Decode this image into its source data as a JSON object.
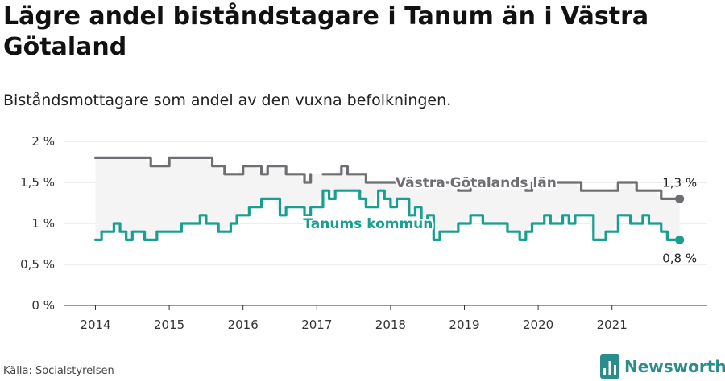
{
  "title": "Lägre andel biståndstagare i Tanum än i Västra Götaland",
  "subtitle": "Biståndsmottagare som andel av den vuxna befolkningen.",
  "source": "Källa: Socialstyrelsen",
  "brand": "Newsworthy",
  "colors": {
    "vastra": "#6e6e73",
    "tanum": "#1a9e8f",
    "band": "#f4f4f4",
    "grid": "#dcdcdc",
    "brand": "#2a8c8c"
  },
  "chart_data": {
    "type": "line",
    "x_start": "2014-01",
    "x_interval": "month",
    "y_ticks": [
      "0 %",
      "0,5 %",
      "1 %",
      "1,5 %",
      "2 %"
    ],
    "x_ticks": [
      "2014",
      "2015",
      "2016",
      "2017",
      "2018",
      "2019",
      "2020",
      "2021"
    ],
    "ylim": [
      0,
      2
    ],
    "series": [
      {
        "name": "Västra Götalands län",
        "key": "vastra",
        "end_label": "1,3 %",
        "values": [
          1.8,
          1.8,
          1.8,
          1.8,
          1.8,
          1.8,
          1.8,
          1.8,
          1.8,
          1.7,
          1.7,
          1.7,
          1.8,
          1.8,
          1.8,
          1.8,
          1.8,
          1.8,
          1.8,
          1.7,
          1.7,
          1.6,
          1.6,
          1.6,
          1.7,
          1.7,
          1.7,
          1.6,
          1.7,
          1.7,
          1.7,
          1.6,
          1.6,
          1.6,
          1.5,
          1.6,
          null,
          1.6,
          1.6,
          1.6,
          1.7,
          1.6,
          1.6,
          1.6,
          1.5,
          1.5,
          1.5,
          1.5,
          1.5,
          1.5,
          1.5,
          1.5,
          1.5,
          1.5,
          1.5,
          1.5,
          1.5,
          1.5,
          1.5,
          1.4,
          1.4,
          1.5,
          1.5,
          1.5,
          1.5,
          1.5,
          1.5,
          1.5,
          1.5,
          1.5,
          1.4,
          1.5,
          1.5,
          1.5,
          1.5,
          1.5,
          1.5,
          1.5,
          1.5,
          1.4,
          1.4,
          1.4,
          1.4,
          1.4,
          1.4,
          1.5,
          1.5,
          1.5,
          1.4,
          1.4,
          1.4,
          1.4,
          1.3,
          1.3,
          1.3,
          1.3
        ]
      },
      {
        "name": "Tanums kommun",
        "key": "tanum",
        "end_label": "0,8 %",
        "values": [
          0.8,
          0.9,
          0.9,
          1.0,
          0.9,
          0.8,
          0.9,
          0.9,
          0.8,
          0.8,
          0.9,
          0.9,
          0.9,
          0.9,
          1.0,
          1.0,
          1.0,
          1.1,
          1.0,
          1.0,
          0.9,
          0.9,
          1.0,
          1.1,
          1.1,
          1.2,
          1.2,
          1.3,
          1.3,
          1.3,
          1.1,
          1.2,
          1.2,
          1.2,
          1.1,
          1.2,
          1.2,
          1.4,
          1.3,
          1.4,
          1.4,
          1.4,
          1.4,
          1.3,
          1.2,
          1.2,
          1.4,
          1.3,
          1.2,
          1.3,
          1.3,
          1.1,
          1.2,
          1.0,
          1.1,
          0.8,
          0.9,
          0.9,
          0.9,
          1.0,
          1.0,
          1.1,
          1.1,
          1.0,
          1.0,
          1.0,
          1.0,
          0.9,
          0.9,
          0.8,
          0.9,
          1.0,
          1.0,
          1.1,
          1.0,
          1.0,
          1.1,
          1.0,
          1.1,
          1.1,
          1.1,
          0.8,
          0.8,
          0.9,
          0.9,
          1.1,
          1.1,
          1.0,
          1.0,
          1.1,
          1.0,
          1.0,
          0.9,
          0.8,
          0.8,
          0.8
        ]
      }
    ],
    "series_labels": [
      {
        "text": "Västra Götalands län",
        "key": "vastra",
        "x": "2018-01",
        "y": 1.5
      },
      {
        "text": "Tanums kommun",
        "key": "tanum",
        "x": "2016-10",
        "y": 1.0
      }
    ],
    "grid": true,
    "legend": "inline"
  }
}
